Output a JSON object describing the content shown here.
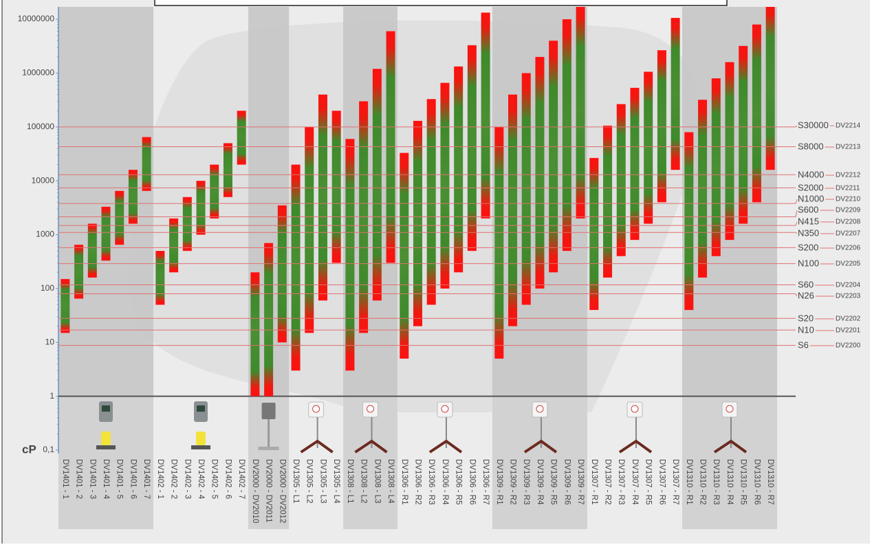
{
  "chart_data": {
    "type": "range-bar",
    "y_label": "cP",
    "log_scale": true,
    "ylim": [
      0.1,
      17000000
    ],
    "yticks": [
      {
        "value": 0.1,
        "label": "0,1"
      },
      1,
      10,
      100,
      1000,
      10000,
      100000,
      1000000,
      10000000
    ],
    "categories": [
      "DV1401 - 1",
      "DV1401 - 2",
      "DV1401 - 3",
      "DV1401 - 4",
      "DV1401 - 5",
      "DV1401 - 6",
      "DV1401 - 7",
      "DV1402 - 1",
      "DV1402 - 2",
      "DV1402 - 3",
      "DV1402 - 4",
      "DV1402 - 5",
      "DV1402 - 6",
      "DV1402 - 7",
      "DV2000 - DV2010",
      "DV2000 - DV2011",
      "DV2000 - DV2012",
      "DV1305 - L1",
      "DV1305 - L2",
      "DV1305 - L3",
      "DV1305 - L4",
      "DV1308 - L1",
      "DV1308 - L2",
      "DV1308 - L3",
      "DV1308 - L4",
      "DV1306 - R1",
      "DV1306 - R2",
      "DV1306 - R3",
      "DV1306 - R4",
      "DV1306 - R5",
      "DV1306 - R6",
      "DV1306 - R7",
      "DV1309 - R1",
      "DV1309 - R2",
      "DV1309 - R3",
      "DV1309 - R4",
      "DV1309 - R5",
      "DV1309 - R6",
      "DV1309 - R7",
      "DV1307 - R1",
      "DV1307 - R2",
      "DV1307 - R3",
      "DV1307 - R4",
      "DV1307 - R5",
      "DV1307 - R6",
      "DV1307 - R7",
      "DV1310 - R1",
      "DV1310 - R2",
      "DV1310 - R3",
      "DV1310 - R4",
      "DV1310 - R5",
      "DV1310 - R6",
      "DV1310 - R7"
    ],
    "low": [
      15,
      65,
      160,
      330,
      650,
      1600,
      6500,
      50,
      200,
      500,
      1000,
      2000,
      5000,
      20000,
      1,
      1,
      10,
      3,
      15,
      60,
      300,
      3,
      15,
      60,
      300,
      5,
      20,
      50,
      100,
      200,
      500,
      2000,
      5,
      20,
      50,
      100,
      200,
      500,
      2000,
      40,
      160,
      400,
      800,
      1600,
      4000,
      16000,
      40,
      160,
      400,
      800,
      1600,
      4000,
      16000
    ],
    "high": [
      150,
      650,
      1600,
      3300,
      6500,
      16000,
      65000,
      500,
      2000,
      5000,
      10000,
      20000,
      50000,
      200000,
      200,
      700,
      3500,
      20000,
      100000,
      400000,
      200000,
      60000,
      300000,
      1200000,
      6000000,
      33000,
      130000,
      330000,
      660000,
      1330000,
      3300000,
      13300000,
      100000,
      400000,
      1000000,
      2000000,
      4000000,
      10000000,
      20000000,
      26600,
      106000,
      266000,
      533000,
      1060000,
      2660000,
      10600000,
      80000,
      320000,
      800000,
      1600000,
      3200000,
      8000000,
      20000000
    ],
    "reference_lines": [
      {
        "name": "S30000",
        "code": "DV2214",
        "value": 100000
      },
      {
        "name": "S8000",
        "code": "DV2213",
        "value": 43000
      },
      {
        "name": "N4000",
        "code": "DV2212",
        "value": 13000
      },
      {
        "name": "S2000",
        "code": "DV2211",
        "value": 7400
      },
      {
        "name": "N1000",
        "code": "DV2210",
        "value": 3800
      },
      {
        "name": "S600",
        "code": "DV2209",
        "value": 2150
      },
      {
        "name": "N415",
        "code": "DV2208",
        "value": 1480
      },
      {
        "name": "N350",
        "code": "DV2207",
        "value": 1100
      },
      {
        "name": "S200",
        "code": "DV2206",
        "value": 575
      },
      {
        "name": "N100",
        "code": "DV2205",
        "value": 290
      },
      {
        "name": "S60",
        "code": "DV2204",
        "value": 117
      },
      {
        "name": "N26",
        "code": "DV2203",
        "value": 80
      },
      {
        "name": "S20",
        "code": "DV2202",
        "value": 28
      },
      {
        "name": "N10",
        "code": "DV2201",
        "value": 17
      },
      {
        "name": "S6",
        "code": "DV2200",
        "value": 8.8
      }
    ]
  }
}
